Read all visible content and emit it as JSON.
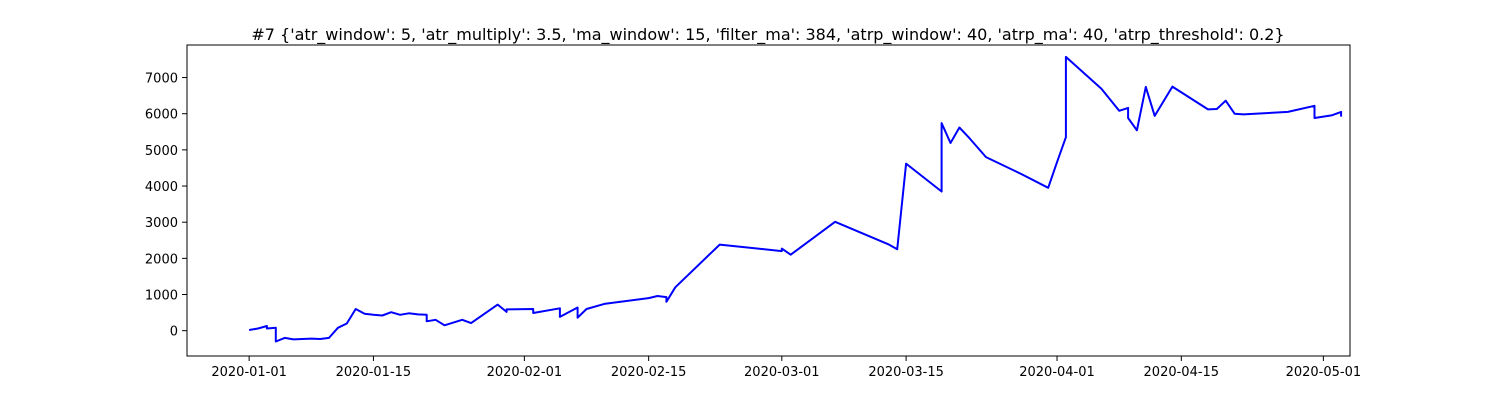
{
  "chart_data": {
    "type": "line",
    "title": "#7 {'atr_window': 5, 'atr_multiply': 3.5, 'ma_window': 15, 'filter_ma': 384, 'atrp_window': 40, 'atrp_ma': 40, 'atrp_threshold': 0.2}",
    "xlabel": "",
    "ylabel": "",
    "xlim": [
      "2019-12-25",
      "2020-05-04"
    ],
    "ylim": [
      -700,
      7900
    ],
    "grid": false,
    "legend": "none",
    "x_ticks": [
      "2020-01-01",
      "2020-01-15",
      "2020-02-01",
      "2020-02-15",
      "2020-03-01",
      "2020-03-15",
      "2020-04-01",
      "2020-04-15",
      "2020-05-01"
    ],
    "y_ticks": [
      0,
      1000,
      2000,
      3000,
      4000,
      5000,
      6000,
      7000
    ],
    "line_color": "#0000ff",
    "series": [
      {
        "x": [
          "2020-01-01",
          "2020-01-02",
          "2020-01-03",
          "2020-01-03",
          "2020-01-04",
          "2020-01-04",
          "2020-01-05",
          "2020-01-06",
          "2020-01-08",
          "2020-01-09",
          "2020-01-10",
          "2020-01-11",
          "2020-01-12",
          "2020-01-13",
          "2020-01-14",
          "2020-01-15",
          "2020-01-16",
          "2020-01-17",
          "2020-01-18",
          "2020-01-19",
          "2020-01-20",
          "2020-01-21",
          "2020-01-21",
          "2020-01-22",
          "2020-01-23",
          "2020-01-25",
          "2020-01-26",
          "2020-01-29",
          "2020-01-30",
          "2020-01-30",
          "2020-02-02",
          "2020-02-02",
          "2020-02-05",
          "2020-02-05",
          "2020-02-07",
          "2020-02-07",
          "2020-02-08",
          "2020-02-10",
          "2020-02-15",
          "2020-02-16",
          "2020-02-17",
          "2020-02-17",
          "2020-02-18",
          "2020-02-23",
          "2020-03-01",
          "2020-03-01",
          "2020-03-02",
          "2020-03-07",
          "2020-03-13",
          "2020-03-14",
          "2020-03-15",
          "2020-03-19",
          "2020-03-19",
          "2020-03-20",
          "2020-03-21",
          "2020-03-22",
          "2020-03-24",
          "2020-03-28",
          "2020-03-31",
          "2020-04-01",
          "2020-04-02",
          "2020-04-02",
          "2020-04-06",
          "2020-04-08",
          "2020-04-09",
          "2020-04-09",
          "2020-04-10",
          "2020-04-11",
          "2020-04-12",
          "2020-04-14",
          "2020-04-18",
          "2020-04-19",
          "2020-04-20",
          "2020-04-21",
          "2020-04-22",
          "2020-04-27",
          "2020-04-30",
          "2020-04-30",
          "2020-05-02",
          "2020-05-03",
          "2020-05-03"
        ],
        "y": [
          20,
          60,
          130,
          60,
          80,
          -300,
          -200,
          -240,
          -220,
          -230,
          -200,
          80,
          200,
          600,
          470,
          440,
          420,
          510,
          440,
          480,
          450,
          440,
          260,
          300,
          150,
          300,
          210,
          720,
          520,
          590,
          600,
          490,
          620,
          380,
          640,
          360,
          600,
          740,
          900,
          960,
          930,
          800,
          1200,
          2380,
          2200,
          2270,
          2100,
          3010,
          2390,
          2250,
          4620,
          3850,
          5740,
          5190,
          5620,
          5360,
          4800,
          4330,
          3950,
          4660,
          5350,
          7570,
          6690,
          6080,
          6160,
          5880,
          5540,
          6740,
          5940,
          6750,
          6120,
          6130,
          6360,
          6000,
          5980,
          6050,
          6220,
          5880,
          5960,
          6050,
          5920
        ]
      }
    ]
  }
}
